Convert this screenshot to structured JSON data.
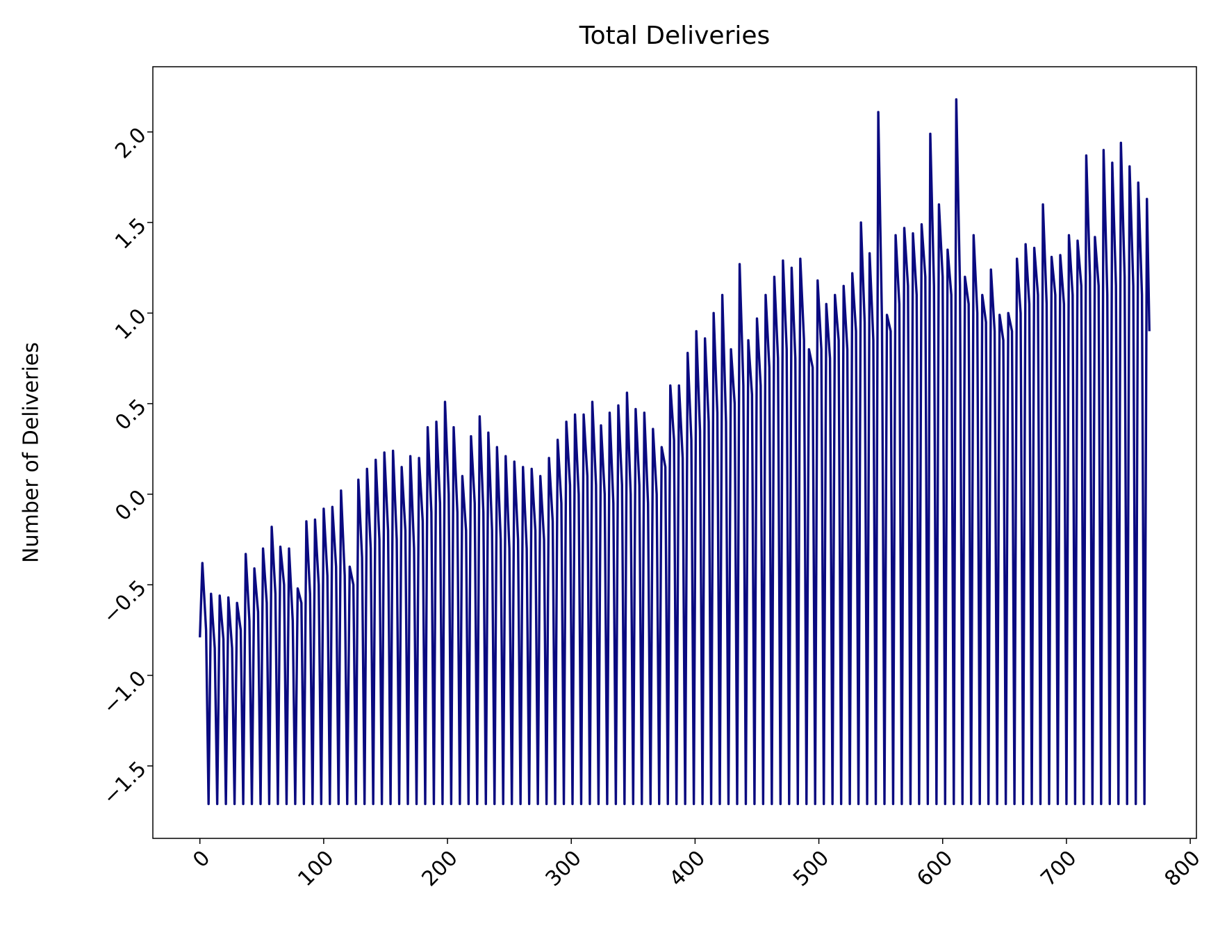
{
  "chart_data": {
    "type": "line",
    "title": "Total Deliveries",
    "y_label": "Number of Deliveries",
    "color": "#0a0a80",
    "xlim": [
      -38,
      805
    ],
    "ylim": [
      -1.9,
      2.36
    ],
    "xticks": [
      0,
      100,
      200,
      300,
      400,
      500,
      600,
      700,
      800
    ],
    "yticks": [
      {
        "value": -1.5,
        "label": "−1.5"
      },
      {
        "value": -1.0,
        "label": "−1.0"
      },
      {
        "value": -0.5,
        "label": "−0.5"
      },
      {
        "value": 0.0,
        "label": "0.0"
      },
      0.5,
      {
        "value": 1.0,
        "label": "1.0"
      },
      1.5,
      {
        "value": 2.0,
        "label": "2.0"
      }
    ],
    "x": [
      0,
      2,
      5,
      7,
      9,
      12,
      14,
      16,
      19,
      21,
      23,
      26,
      28,
      30,
      33,
      35,
      37,
      40,
      42,
      44,
      47,
      49,
      51,
      54,
      56,
      58,
      61,
      63,
      65,
      68,
      70,
      72,
      75,
      77,
      79,
      82,
      84,
      86,
      89,
      91,
      93,
      96,
      98,
      100,
      103,
      105,
      107,
      110,
      112,
      114,
      117,
      119,
      121,
      124,
      126,
      128,
      131,
      133,
      135,
      138,
      140,
      142,
      145,
      147,
      149,
      152,
      154,
      156,
      159,
      161,
      163,
      166,
      168,
      170,
      173,
      175,
      177,
      180,
      182,
      184,
      187,
      189,
      191,
      194,
      196,
      198,
      201,
      203,
      205,
      208,
      210,
      212,
      215,
      217,
      219,
      222,
      224,
      226,
      229,
      231,
      233,
      236,
      238,
      240,
      243,
      245,
      247,
      250,
      252,
      254,
      257,
      259,
      261,
      264,
      266,
      268,
      271,
      273,
      275,
      278,
      280,
      282,
      285,
      287,
      289,
      292,
      294,
      296,
      299,
      301,
      303,
      306,
      308,
      310,
      313,
      315,
      317,
      320,
      322,
      324,
      327,
      329,
      331,
      334,
      336,
      338,
      341,
      343,
      345,
      348,
      350,
      352,
      355,
      357,
      359,
      362,
      364,
      366,
      369,
      371,
      373,
      376,
      378,
      380,
      383,
      385,
      387,
      390,
      392,
      394,
      397,
      399,
      401,
      404,
      406,
      408,
      411,
      413,
      415,
      418,
      420,
      422,
      425,
      427,
      429,
      432,
      434,
      436,
      439,
      441,
      443,
      446,
      448,
      450,
      453,
      455,
      457,
      460,
      462,
      464,
      467,
      469,
      471,
      474,
      476,
      478,
      481,
      483,
      485,
      488,
      490,
      492,
      495,
      497,
      499,
      502,
      504,
      506,
      509,
      511,
      513,
      516,
      518,
      520,
      523,
      525,
      527,
      530,
      532,
      534,
      537,
      539,
      541,
      544,
      546,
      548,
      551,
      553,
      555,
      558,
      560,
      562,
      565,
      567,
      569,
      572,
      574,
      576,
      579,
      581,
      583,
      586,
      588,
      590,
      593,
      595,
      597,
      600,
      602,
      604,
      607,
      609,
      611,
      614,
      616,
      618,
      621,
      623,
      625,
      628,
      630,
      632,
      635,
      637,
      639,
      642,
      644,
      646,
      649,
      651,
      653,
      656,
      658,
      660,
      663,
      665,
      667,
      670,
      672,
      674,
      677,
      679,
      681,
      684,
      686,
      688,
      691,
      693,
      695,
      698,
      700,
      702,
      705,
      707,
      709,
      712,
      714,
      716,
      719,
      721,
      723,
      726,
      728,
      730,
      733,
      735,
      737,
      740,
      742,
      744,
      747,
      749,
      751,
      754,
      756,
      758,
      761,
      763,
      765,
      767
    ],
    "values": [
      -0.79,
      -0.38,
      -0.75,
      -1.71,
      -0.55,
      -0.85,
      -1.71,
      -0.56,
      -0.8,
      -1.71,
      -0.57,
      -0.85,
      -1.71,
      -0.6,
      -0.75,
      -1.71,
      -0.33,
      -0.7,
      -1.71,
      -0.41,
      -0.65,
      -1.71,
      -0.3,
      -0.6,
      -1.71,
      -0.18,
      -0.55,
      -1.71,
      -0.29,
      -0.5,
      -1.71,
      -0.3,
      -0.7,
      -1.71,
      -0.52,
      -0.6,
      -1.71,
      -0.15,
      -0.55,
      -1.71,
      -0.14,
      -0.5,
      -1.71,
      -0.08,
      -0.45,
      -1.71,
      -0.07,
      -0.4,
      -1.71,
      0.02,
      -0.45,
      -1.71,
      -0.4,
      -0.5,
      -1.71,
      0.08,
      -0.35,
      -1.71,
      0.14,
      -0.3,
      -1.71,
      0.19,
      -0.25,
      -1.71,
      0.23,
      -0.2,
      -1.71,
      0.24,
      -0.25,
      -1.71,
      0.15,
      -0.2,
      -1.71,
      0.21,
      -0.3,
      -1.71,
      0.2,
      -0.15,
      -1.71,
      0.37,
      -0.1,
      -1.71,
      0.4,
      -0.05,
      -1.71,
      0.51,
      0.0,
      -1.71,
      0.37,
      -0.1,
      -1.71,
      0.1,
      -0.2,
      -1.71,
      0.32,
      -0.05,
      -1.71,
      0.43,
      -0.1,
      -1.71,
      0.34,
      -0.2,
      -1.71,
      0.26,
      -0.25,
      -1.71,
      0.21,
      -0.3,
      -1.71,
      0.18,
      -0.25,
      -1.71,
      0.15,
      -0.3,
      -1.71,
      0.14,
      -0.2,
      -1.71,
      0.1,
      -0.25,
      -1.71,
      0.2,
      -0.15,
      -1.71,
      0.3,
      -0.05,
      -1.71,
      0.4,
      0.05,
      -1.71,
      0.44,
      0.0,
      -1.71,
      0.44,
      0.1,
      -1.71,
      0.51,
      0.05,
      -1.71,
      0.38,
      0.0,
      -1.71,
      0.45,
      -0.05,
      -1.71,
      0.49,
      0.05,
      -1.71,
      0.56,
      0.0,
      -1.71,
      0.47,
      0.05,
      -1.71,
      0.45,
      -0.05,
      -1.71,
      0.36,
      0.0,
      -1.71,
      0.26,
      0.15,
      -1.71,
      0.6,
      0.3,
      -1.71,
      0.6,
      0.2,
      -1.71,
      0.78,
      0.3,
      -1.71,
      0.9,
      0.35,
      -1.71,
      0.86,
      0.4,
      -1.71,
      1.0,
      0.45,
      -1.71,
      1.1,
      0.4,
      -1.71,
      0.8,
      0.5,
      -1.71,
      1.27,
      0.6,
      -1.71,
      0.85,
      0.55,
      -1.71,
      0.97,
      0.6,
      -1.71,
      1.1,
      0.7,
      -1.71,
      1.2,
      0.75,
      -1.71,
      1.29,
      0.8,
      -1.71,
      1.25,
      0.75,
      -1.71,
      1.3,
      0.85,
      -1.71,
      0.8,
      0.7,
      -1.71,
      1.18,
      0.8,
      -1.71,
      1.05,
      0.75,
      -1.71,
      1.1,
      0.85,
      -1.71,
      1.15,
      0.8,
      -1.71,
      1.22,
      0.9,
      -1.71,
      1.5,
      0.95,
      -1.71,
      1.33,
      0.85,
      -1.71,
      2.11,
      0.95,
      -1.71,
      0.99,
      0.9,
      -1.71,
      1.43,
      1.05,
      -1.71,
      1.47,
      1.15,
      -1.71,
      1.44,
      1.1,
      -1.71,
      1.49,
      1.2,
      -1.71,
      1.99,
      1.15,
      -1.71,
      1.6,
      1.2,
      -1.71,
      1.35,
      1.1,
      -1.71,
      2.18,
      1.15,
      -1.71,
      1.2,
      1.05,
      -1.71,
      1.43,
      1.0,
      -1.71,
      1.1,
      0.95,
      -1.71,
      1.24,
      0.9,
      -1.71,
      0.99,
      0.85,
      -1.71,
      1.0,
      0.9,
      -1.71,
      1.3,
      1.0,
      -1.71,
      1.38,
      1.05,
      -1.71,
      1.36,
      1.1,
      -1.71,
      1.6,
      1.05,
      -1.71,
      1.31,
      1.1,
      -1.71,
      1.32,
      1.05,
      -1.71,
      1.43,
      1.1,
      -1.71,
      1.4,
      1.15,
      -1.71,
      1.87,
      1.2,
      -1.71,
      1.42,
      1.15,
      -1.71,
      1.9,
      1.1,
      -1.71,
      1.83,
      1.15,
      -1.71,
      1.94,
      1.2,
      -1.71,
      1.81,
      1.15,
      -1.71,
      1.72,
      1.1,
      -1.71,
      1.63,
      0.9
    ]
  }
}
